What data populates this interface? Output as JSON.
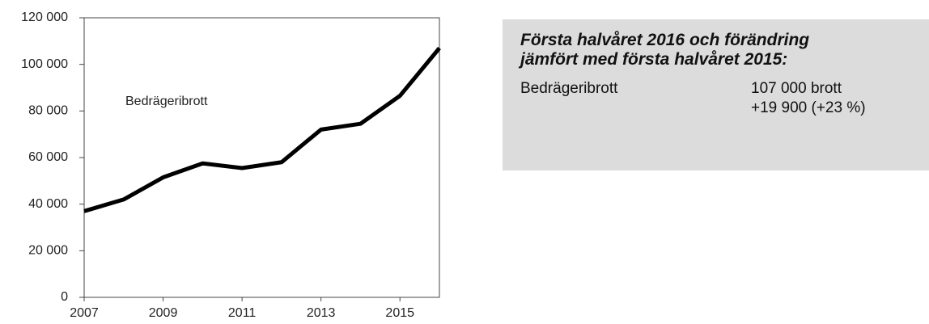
{
  "chart_data": {
    "type": "line",
    "annotation": "Bedrägeribrott",
    "x": [
      2007,
      2008,
      2009,
      2010,
      2011,
      2012,
      2013,
      2014,
      2015,
      2016
    ],
    "series": [
      {
        "name": "Bedrägeribrott",
        "color": "#000000",
        "values": [
          37000,
          42000,
          51500,
          57500,
          55500,
          58000,
          72000,
          74500,
          86500,
          107000
        ]
      }
    ],
    "xlim": [
      2007,
      2016
    ],
    "xticks": [
      2007,
      2009,
      2011,
      2013,
      2015
    ],
    "ylim": [
      0,
      120000
    ],
    "yticks": [
      0,
      {
        "value": 20000,
        "label": "20 000"
      },
      {
        "value": 40000,
        "label": "40 000"
      },
      {
        "value": 60000,
        "label": "60 000"
      },
      {
        "value": 80000,
        "label": "80 000"
      },
      {
        "value": 100000,
        "label": "100 000"
      },
      {
        "value": 120000,
        "label": "120 000"
      }
    ],
    "grid": false
  },
  "info_box": {
    "title_lines": [
      "Första halvåret 2016 och förändring",
      "jämfört med första halvåret 2015:"
    ],
    "rows": [
      {
        "label": "Bedrägeribrott",
        "value_lines": [
          "107 000 brott",
          "+19 900 (+23 %)"
        ]
      }
    ]
  }
}
